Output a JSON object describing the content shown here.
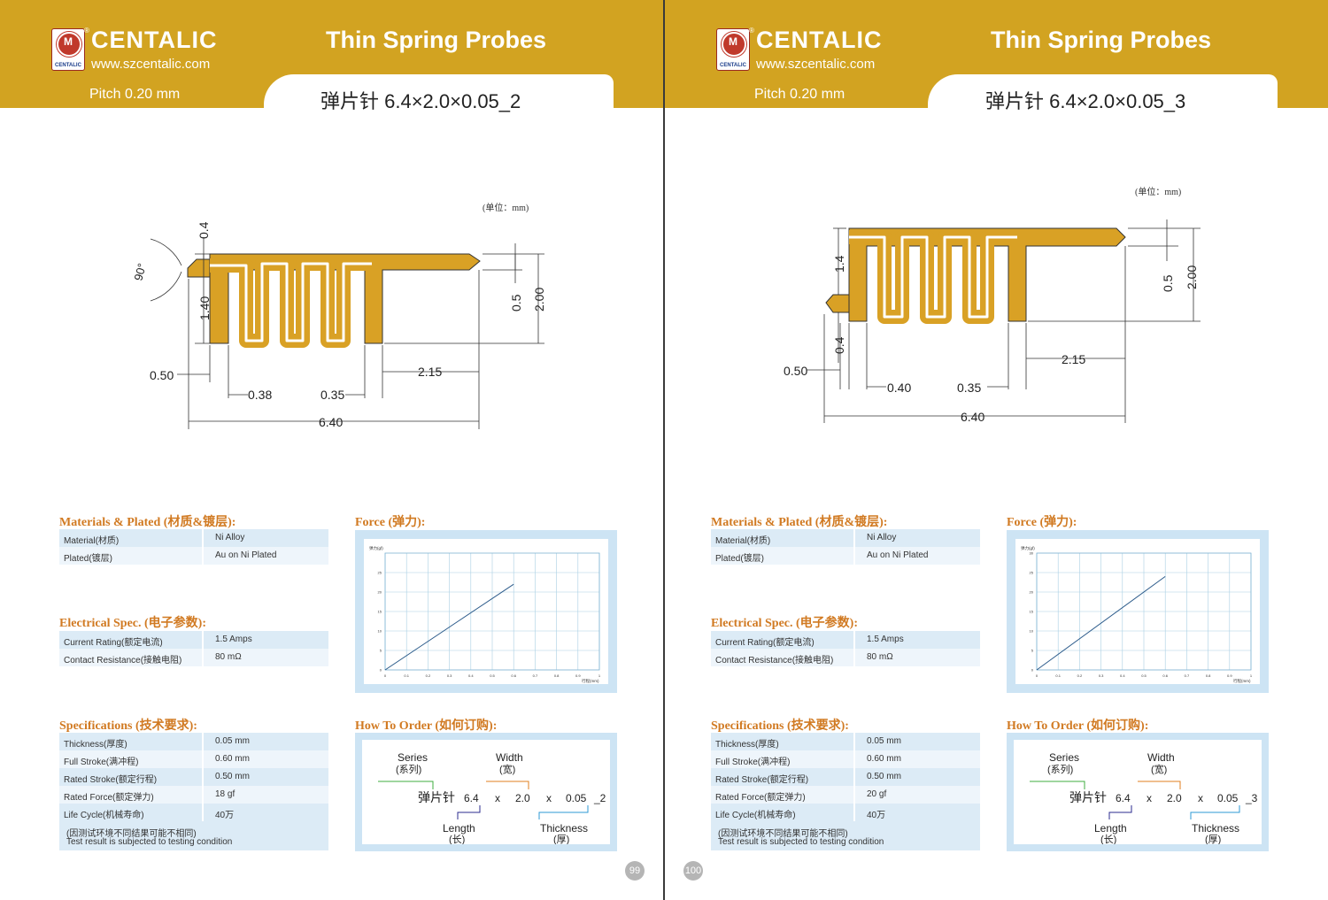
{
  "pages": [
    {
      "brand": "CENTALIC",
      "brand_reg": "®",
      "logo_caption": "CENTALIC",
      "url": "www.szcentalic.com",
      "header_title": "Thin Spring Probes",
      "pitch": "Pitch 0.20 mm",
      "product_title": "弹片针 6.4×2.0×0.05_2",
      "unit": "(单位：mm)",
      "dims": {
        "angle": "90°",
        "d04": "0.4",
        "d140": "1.40",
        "d05": "0.5",
        "d200": "2.00",
        "d050": "0.50",
        "d038": "0.38",
        "d035": "0.35",
        "d215": "2.15",
        "d640": "6.40"
      },
      "materials_title": "Materials & Plated (材质&镀层):",
      "materials": [
        {
          "k": "Material(材质)",
          "v": "Ni Alloy"
        },
        {
          "k": "Plated(镀层)",
          "v": "Au on Ni Plated"
        }
      ],
      "electrical_title": "Electrical Spec. (电子参数):",
      "electrical": [
        {
          "k": "Current Rating(额定电流)",
          "v": "1.5  Amps"
        },
        {
          "k": "Contact Resistance(接触电阻)",
          "v": "80 mΩ"
        }
      ],
      "spec_title": "Specifications (技术要求):",
      "specs": [
        {
          "k": "Thickness(厚度)",
          "v": "0.05 mm"
        },
        {
          "k": "Full Stroke(满冲程)",
          "v": "0.60 mm"
        },
        {
          "k": "Rated Stroke(额定行程)",
          "v": "0.50 mm"
        },
        {
          "k": "Rated Force(额定弹力)",
          "v": "18 gf"
        },
        {
          "k": "Life Cycle(机械寿命)",
          "v": "40万"
        }
      ],
      "note_cn": "(因测试环境不同结果可能不相同)",
      "note_en": "Test result is subjected to testing condition",
      "force_title": "Force (弹力):",
      "order_title": "How To Order (如何订购):",
      "order": {
        "series": "Series",
        "series_cn": "(系列)",
        "width": "Width",
        "width_cn": "(宽)",
        "name": "弹片针",
        "len_val": "6.4",
        "x1": "x",
        "w_val": "2.0",
        "x2": "x",
        "t_val": "0.05",
        "suffix": "_2",
        "length": "Length",
        "length_cn": "(长)",
        "thickness": "Thickness",
        "thickness_cn": "(厚)"
      },
      "page_number": "99"
    },
    {
      "brand": "CENTALIC",
      "brand_reg": "®",
      "logo_caption": "CENTALIC",
      "url": "www.szcentalic.com",
      "header_title": "Thin Spring Probes",
      "pitch": "Pitch 0.20 mm",
      "product_title": "弹片针 6.4×2.0×0.05_3",
      "unit": "(单位：mm)",
      "dims": {
        "d14": "1.4",
        "d04": "0.4",
        "d05": "0.5",
        "d200": "2.00",
        "d050": "0.50",
        "d040": "0.40",
        "d035": "0.35",
        "d215": "2.15",
        "d640": "6.40"
      },
      "materials_title": "Materials & Plated (材质&镀层):",
      "materials": [
        {
          "k": "Material(材质)",
          "v": "Ni Alloy"
        },
        {
          "k": "Plated(镀层)",
          "v": "Au on Ni Plated"
        }
      ],
      "electrical_title": "Electrical Spec. (电子参数):",
      "electrical": [
        {
          "k": "Current Rating(额定电流)",
          "v": "1.5  Amps"
        },
        {
          "k": "Contact Resistance(接触电阻)",
          "v": "80 mΩ"
        }
      ],
      "spec_title": "Specifications (技术要求):",
      "specs": [
        {
          "k": "Thickness(厚度)",
          "v": "0.05 mm"
        },
        {
          "k": "Full Stroke(满冲程)",
          "v": "0.60 mm"
        },
        {
          "k": "Rated Stroke(额定行程)",
          "v": "0.50 mm"
        },
        {
          "k": "Rated Force(额定弹力)",
          "v": "20 gf"
        },
        {
          "k": "Life Cycle(机械寿命)",
          "v": "40万"
        }
      ],
      "note_cn": "(因测试环境不同结果可能不相同)",
      "note_en": "Test result is subjected to testing condition",
      "force_title": "Force (弹力):",
      "order_title": "How To Order (如何订购):",
      "order": {
        "series": "Series",
        "series_cn": "(系列)",
        "width": "Width",
        "width_cn": "(宽)",
        "name": "弹片针",
        "len_val": "6.4",
        "x1": "x",
        "w_val": "2.0",
        "x2": "x",
        "t_val": "0.05",
        "suffix": "_3",
        "length": "Length",
        "length_cn": "(长)",
        "thickness": "Thickness",
        "thickness_cn": "(厚)"
      },
      "page_number": "100"
    }
  ],
  "chart_data": [
    {
      "type": "line",
      "ylabel": "弹力(gf)",
      "xlabel": "行程(mm)",
      "xlim": [
        0,
        1
      ],
      "ylim": [
        0,
        30
      ],
      "x_ticks": [
        "0",
        "0.1",
        "0.2",
        "0.3",
        "0.4",
        "0.5",
        "0.6",
        "0.7",
        "0.8",
        "0.9",
        "1"
      ],
      "y_ticks": [
        "0",
        "5",
        "10",
        "15",
        "20",
        "25"
      ],
      "grid": true,
      "line_color": "#2b5a8a",
      "series": [
        {
          "x": [
            0,
            0.6
          ],
          "y": [
            0,
            22
          ]
        }
      ]
    },
    {
      "type": "line",
      "ylabel": "弹力(gf)",
      "xlabel": "行程(mm)",
      "xlim": [
        0,
        1
      ],
      "ylim": [
        0,
        30
      ],
      "x_ticks": [
        "0",
        "0.1",
        "0.2",
        "0.3",
        "0.4",
        "0.5",
        "0.6",
        "0.7",
        "0.8",
        "0.9",
        "1"
      ],
      "y_ticks": [
        "0",
        "5",
        "10",
        "15",
        "20",
        "25",
        "30"
      ],
      "grid": true,
      "line_color": "#2b5a8a",
      "series": [
        {
          "x": [
            0,
            0.6
          ],
          "y": [
            0,
            24
          ]
        }
      ]
    }
  ],
  "colors": {
    "band": "#d2a321",
    "part": "#d9a125",
    "section": "#d17a22",
    "table": "#dcebf6"
  }
}
